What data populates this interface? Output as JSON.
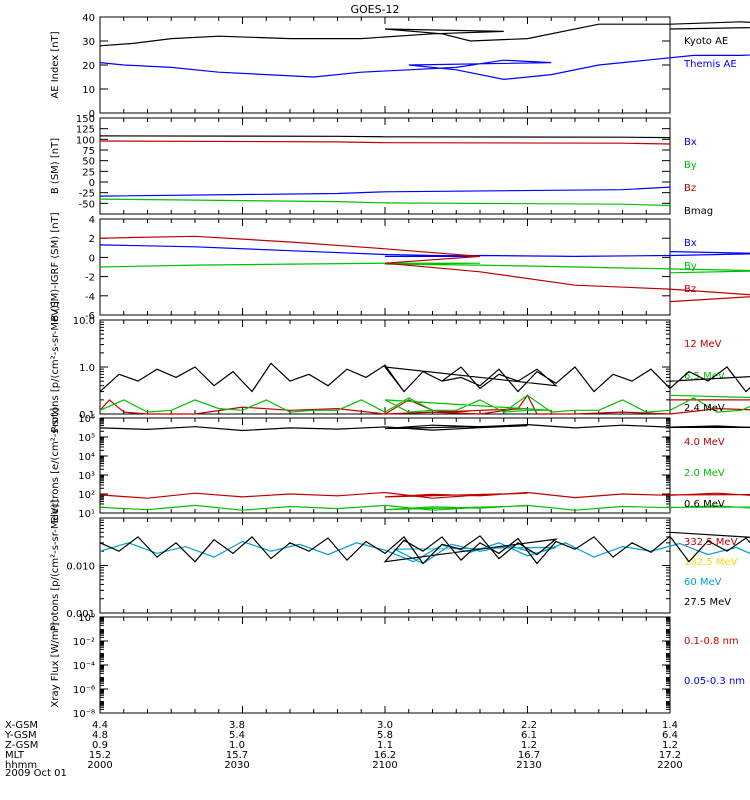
{
  "title": "GOES-12",
  "footer": {
    "rows": [
      {
        "label": "X-GSM",
        "values": [
          "4.4",
          "3.8",
          "3.0",
          "2.2",
          "1.4"
        ]
      },
      {
        "label": "Y-GSM",
        "values": [
          "4.8",
          "5.4",
          "5.8",
          "6.1",
          "6.4"
        ]
      },
      {
        "label": "Z-GSM",
        "values": [
          "0.9",
          "1.0",
          "1.1",
          "1.2",
          "1.2"
        ]
      },
      {
        "label": "MLT",
        "values": [
          "15.2",
          "15.7",
          "16.2",
          "16.7",
          "17.2"
        ]
      },
      {
        "label": "hhmm",
        "values": [
          "2000",
          "2030",
          "2100",
          "2130",
          "2200"
        ]
      }
    ],
    "date": "2009 Oct 01"
  },
  "chart_data": [
    {
      "type": "line",
      "ylabel": "AE Index [nT]",
      "ylim": [
        0,
        40
      ],
      "yticks": [
        "0",
        "10",
        "20",
        "30",
        "40"
      ],
      "xlim": [
        2000,
        2200
      ],
      "series": [
        {
          "name": "Kyoto AE",
          "color": "#000000",
          "x": [
            2000,
            2007,
            2015,
            2025,
            2040,
            2055,
            2070,
            2085,
            2100,
            2112,
            2118,
            2130,
            2145,
            2160,
            2175,
            2190,
            2200
          ],
          "values": [
            28,
            29,
            31,
            32,
            31,
            31,
            33,
            34,
            35,
            33,
            30,
            31,
            37,
            37,
            38,
            36,
            35
          ]
        },
        {
          "name": "Themis AE",
          "color": "#0000ff",
          "x": [
            2000,
            2005,
            2015,
            2025,
            2035,
            2045,
            2055,
            2065,
            2075,
            2085,
            2095,
            2105,
            2115,
            2125,
            2135,
            2145,
            2155,
            2165,
            2175,
            2185,
            2195
          ],
          "values": [
            21,
            20,
            19,
            17,
            16,
            15,
            17,
            18,
            19,
            22,
            21,
            20,
            18,
            14,
            16,
            20,
            22,
            24,
            24,
            25,
            26
          ]
        }
      ]
    },
    {
      "type": "line",
      "ylabel": "B (SM) [nT]",
      "ylim": [
        -75,
        150
      ],
      "yticks": [
        "-50",
        "-25",
        "0",
        "25",
        "50",
        "75",
        "100",
        "125",
        "150"
      ],
      "xlim": [
        2000,
        2200
      ],
      "series": [
        {
          "name": "Bx",
          "color": "#0000ff",
          "x": [
            2000,
            2050,
            2100,
            2150,
            2200
          ],
          "values": [
            -33,
            -27,
            -23,
            -18,
            -12
          ]
        },
        {
          "name": "By",
          "color": "#00c000",
          "x": [
            2000,
            2050,
            2100,
            2150,
            2200
          ],
          "values": [
            -40,
            -46,
            -49,
            -52,
            -55
          ]
        },
        {
          "name": "Bz",
          "color": "#c00000",
          "x": [
            2000,
            2050,
            2100,
            2150,
            2200
          ],
          "values": [
            96,
            94,
            92,
            91,
            89
          ]
        },
        {
          "name": "Bmag",
          "color": "#000000",
          "x": [
            2000,
            2050,
            2100,
            2150,
            2200
          ],
          "values": [
            108,
            107,
            106,
            105,
            104
          ]
        }
      ]
    },
    {
      "type": "line",
      "ylabel": "B (SM)-IGRF (SM) [nT]",
      "ylim": [
        -6,
        4
      ],
      "yticks": [
        "-6",
        "-4",
        "-2",
        "0",
        "2",
        "4"
      ],
      "xlim": [
        2000,
        2200
      ],
      "series": [
        {
          "name": "Bx",
          "color": "#0000ff",
          "x": [
            2000,
            2020,
            2040,
            2060,
            2080,
            2100,
            2120,
            2140,
            2160,
            2180,
            2200
          ],
          "values": [
            1.3,
            1.1,
            0.7,
            0.3,
            0.1,
            0.1,
            0.2,
            0.1,
            0.2,
            0.4,
            0.6
          ]
        },
        {
          "name": "By",
          "color": "#00c000",
          "x": [
            2000,
            2020,
            2040,
            2060,
            2080,
            2100,
            2120,
            2140,
            2160,
            2180,
            2200
          ],
          "values": [
            -1.0,
            -0.8,
            -0.7,
            -0.6,
            -0.6,
            -0.7,
            -0.8,
            -1.0,
            -1.2,
            -1.4,
            -1.6
          ]
        },
        {
          "name": "Bz",
          "color": "#c00000",
          "x": [
            2000,
            2020,
            2040,
            2060,
            2080,
            2100,
            2120,
            2140,
            2160,
            2180,
            2200
          ],
          "values": [
            2.0,
            2.2,
            1.6,
            0.9,
            0.1,
            -0.6,
            -1.5,
            -2.9,
            -3.3,
            -4.0,
            -4.6
          ]
        }
      ]
    },
    {
      "type": "line",
      "ylabel": "Protons [p/(cm²-s-sr-MeV)]",
      "scale": "log",
      "ylim": [
        0.1,
        10
      ],
      "yticks": [
        "0.1",
        "1.0",
        "10.0"
      ],
      "xlim": [
        2000,
        2200
      ],
      "series": [
        {
          "name": "12 MeV",
          "color": "#c00000",
          "x": [
            2000,
            2002,
            2005,
            2010,
            2014,
            2020,
            2030,
            2040,
            2050,
            2060,
            2065,
            2070,
            2075,
            2080,
            2090,
            2100,
            2110,
            2120,
            2128,
            2130,
            2132,
            2140,
            2150,
            2160,
            2170,
            2180,
            2190,
            2195,
            2200
          ],
          "values": [
            0.12,
            0.2,
            0.11,
            0.1,
            0.1,
            0.1,
            0.14,
            0.12,
            0.13,
            0.1,
            0.2,
            0.12,
            0.11,
            0.12,
            0.13,
            0.1,
            0.11,
            0.1,
            0.13,
            0.25,
            0.1,
            0.1,
            0.11,
            0.1,
            0.13,
            0.12,
            0.12,
            0.2,
            0.2
          ]
        },
        {
          "name": "6.5 MeV",
          "color": "#00c000",
          "x": [
            2000,
            2005,
            2010,
            2015,
            2020,
            2025,
            2030,
            2035,
            2040,
            2045,
            2050,
            2055,
            2060,
            2065,
            2070,
            2075,
            2080,
            2085,
            2090,
            2095,
            2100,
            2105,
            2110,
            2115,
            2120,
            2125,
            2130,
            2135,
            2140,
            2145,
            2150,
            2155,
            2160,
            2165,
            2170,
            2175,
            2180,
            2185,
            2190,
            2195,
            2200
          ],
          "values": [
            0.12,
            0.2,
            0.11,
            0.12,
            0.2,
            0.13,
            0.12,
            0.2,
            0.11,
            0.12,
            0.12,
            0.2,
            0.11,
            0.22,
            0.12,
            0.12,
            0.2,
            0.11,
            0.12,
            0.12,
            0.2,
            0.11,
            0.12,
            0.12,
            0.2,
            0.11,
            0.25,
            0.11,
            0.12,
            0.12,
            0.2,
            0.11,
            0.12,
            0.22,
            0.11,
            0.12,
            0.2,
            0.11,
            0.12,
            0.2,
            0.25
          ]
        },
        {
          "name": "2.4 MeV",
          "color": "#000000",
          "x": [
            2000,
            2004,
            2008,
            2012,
            2016,
            2020,
            2024,
            2028,
            2032,
            2036,
            2040,
            2044,
            2048,
            2052,
            2056,
            2060,
            2064,
            2068,
            2072,
            2076,
            2080,
            2084,
            2088,
            2092,
            2096,
            2100,
            2104,
            2108,
            2112,
            2116,
            2120,
            2124,
            2128,
            2132,
            2136,
            2140,
            2144,
            2148,
            2152,
            2156,
            2160,
            2164,
            2168,
            2172,
            2176,
            2180,
            2184,
            2188,
            2192,
            2196,
            2200
          ],
          "values": [
            0.3,
            0.7,
            0.5,
            0.9,
            0.6,
            1.0,
            0.4,
            0.8,
            0.3,
            1.2,
            0.5,
            0.7,
            0.4,
            0.9,
            0.6,
            1.1,
            0.3,
            0.8,
            0.5,
            1.0,
            0.35,
            0.7,
            0.5,
            0.9,
            0.4,
            1.0,
            0.3,
            0.8,
            0.5,
            0.6,
            0.4,
            0.9,
            0.3,
            0.8,
            0.45,
            1.0,
            0.3,
            0.7,
            0.5,
            0.9,
            0.35,
            0.8,
            0.5,
            1.0,
            0.3,
            0.7,
            0.6,
            1.0,
            0.4,
            0.8,
            0.5
          ]
        }
      ]
    },
    {
      "type": "line",
      "ylabel": "Electrons [e/(cm²-s-sr)]",
      "scale": "log",
      "ylim": [
        10,
        1000000
      ],
      "yticks": [
        "10¹",
        "10²",
        "10³",
        "10⁴",
        "10⁵",
        "10⁶"
      ],
      "xlim": [
        2000,
        2200
      ],
      "series": [
        {
          "name": "4.0 MeV",
          "color": "#c00000",
          "x": [
            2000,
            2010,
            2020,
            2030,
            2040,
            2050,
            2060,
            2070,
            2080,
            2090,
            2100,
            2110,
            2120,
            2130,
            2140,
            2150,
            2160,
            2170,
            2180,
            2190,
            2200
          ],
          "values": [
            90,
            60,
            110,
            70,
            100,
            80,
            120,
            60,
            90,
            110,
            70,
            95,
            80,
            120,
            65,
            100,
            85,
            110,
            75,
            95,
            90
          ]
        },
        {
          "name": "2.0 MeV",
          "color": "#00c000",
          "x": [
            2000,
            2010,
            2020,
            2030,
            2040,
            2050,
            2060,
            2070,
            2080,
            2090,
            2100,
            2110,
            2120,
            2130,
            2140,
            2150,
            2160,
            2170,
            2180,
            2190,
            2200
          ],
          "values": [
            20,
            15,
            25,
            14,
            22,
            17,
            25,
            14,
            20,
            24,
            15,
            21,
            18,
            25,
            14,
            22,
            19,
            24,
            16,
            21,
            20
          ]
        },
        {
          "name": "0.6 MeV",
          "color": "#000000",
          "x": [
            2000,
            2010,
            2020,
            2030,
            2040,
            2050,
            2060,
            2070,
            2080,
            2090,
            2100,
            2110,
            2120,
            2130,
            2140,
            2150,
            2160,
            2170,
            2180,
            2190,
            2200
          ],
          "values": [
            300000,
            250000,
            350000,
            220000,
            300000,
            260000,
            340000,
            230000,
            310000,
            400000,
            280000,
            420000,
            350000,
            450000,
            300000,
            420000,
            330000,
            380000,
            290000,
            330000,
            320000
          ]
        }
      ]
    },
    {
      "type": "line",
      "ylabel": "Protons [p/(cm²-s-sr-MeV)]",
      "scale": "log",
      "ylim": [
        0.001,
        0.1
      ],
      "yticks": [
        "0.001",
        "0.010"
      ],
      "xlim": [
        2000,
        2200
      ],
      "series": [
        {
          "name": "332.5 MeV",
          "color": "#c00000",
          "x": [],
          "values": []
        },
        {
          "name": "132.5 MeV",
          "color": "#ffd700",
          "x": [],
          "values": []
        },
        {
          "name": "60 MeV",
          "color": "#00a0d0",
          "x": [
            2000,
            2006,
            2012,
            2018,
            2024,
            2030,
            2036,
            2042,
            2048,
            2054,
            2060,
            2066,
            2072,
            2078,
            2084,
            2090,
            2096,
            2102,
            2108,
            2114,
            2120,
            2126,
            2132,
            2138,
            2144,
            2150,
            2156,
            2162,
            2168,
            2174,
            2180,
            2186,
            2192,
            2198
          ],
          "values": [
            0.02,
            0.03,
            0.018,
            0.025,
            0.015,
            0.032,
            0.02,
            0.028,
            0.017,
            0.03,
            0.021,
            0.012,
            0.027,
            0.019,
            0.03,
            0.016,
            0.024,
            0.022,
            0.011,
            0.028,
            0.02,
            0.026,
            0.018,
            0.03,
            0.015,
            0.025,
            0.02,
            0.029,
            0.017,
            0.024,
            0.013,
            0.027,
            0.02,
            0.024
          ]
        },
        {
          "name": "27.5 MeV",
          "color": "#000000",
          "x": [
            2000,
            2004,
            2008,
            2012,
            2016,
            2020,
            2024,
            2028,
            2032,
            2036,
            2040,
            2044,
            2048,
            2052,
            2056,
            2060,
            2064,
            2068,
            2072,
            2076,
            2080,
            2084,
            2088,
            2092,
            2096,
            2100,
            2104,
            2108,
            2112,
            2116,
            2120,
            2124,
            2128,
            2132,
            2136,
            2140,
            2144,
            2148,
            2152,
            2156,
            2160,
            2164,
            2168,
            2172,
            2176,
            2180,
            2184,
            2188,
            2192,
            2196,
            2200
          ],
          "values": [
            0.03,
            0.02,
            0.04,
            0.015,
            0.03,
            0.012,
            0.035,
            0.018,
            0.04,
            0.014,
            0.03,
            0.02,
            0.038,
            0.013,
            0.032,
            0.018,
            0.04,
            0.011,
            0.028,
            0.022,
            0.042,
            0.014,
            0.03,
            0.017,
            0.036,
            0.012,
            0.034,
            0.02,
            0.04,
            0.013,
            0.03,
            0.018,
            0.037,
            0.011,
            0.032,
            0.022,
            0.04,
            0.015,
            0.03,
            0.019,
            0.041,
            0.012,
            0.033,
            0.02,
            0.038,
            0.014,
            0.03,
            0.021,
            0.04,
            0.03,
            0.05
          ]
        }
      ]
    },
    {
      "type": "line",
      "ylabel": "Xray Flux [W/m²]",
      "scale": "log",
      "ylim": [
        1e-08,
        1
      ],
      "yticks": [
        "10⁻⁸",
        "10⁻⁶",
        "10⁻⁴",
        "10⁻²",
        "10⁰"
      ],
      "xlim": [
        2000,
        2200
      ],
      "series": [
        {
          "name": "0.1-0.8 nm",
          "color": "#c00000",
          "x": [],
          "values": []
        },
        {
          "name": "0.05-0.3 nm",
          "color": "#0000ff",
          "x": [],
          "values": []
        }
      ]
    }
  ]
}
